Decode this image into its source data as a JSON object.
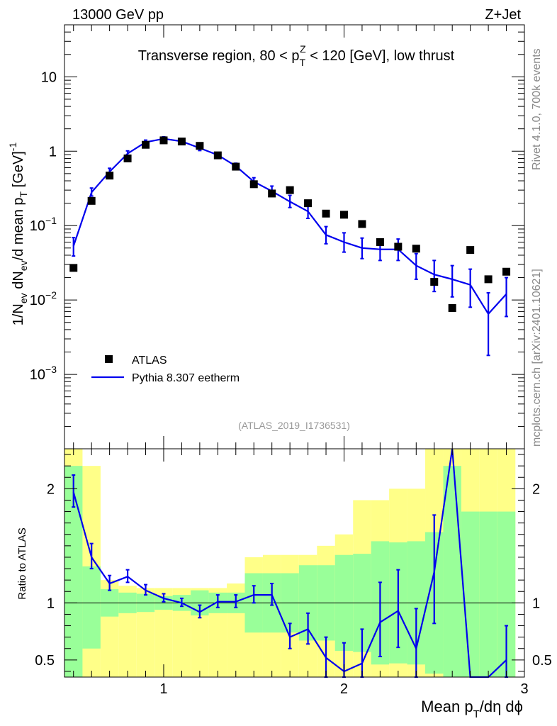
{
  "header": {
    "left": "13000 GeV pp",
    "right": "Z+Jet"
  },
  "side_labels": {
    "rivet": "Rivet 4.1.0,  700k events",
    "mcplots": "mcplots.cern.ch [arXiv:2401.10621]"
  },
  "colors": {
    "mc": "#0000ee",
    "data": "#000000",
    "band_inner": "#99ff99",
    "band_outer": "#ffff88"
  },
  "chart_data": [
    {
      "type": "scatter",
      "panel": "main",
      "title": "Transverse region, 80 < p_T^Z < 120 [GeV], low thrust",
      "analysis_label": "(ATLAS_2019_I1736531)",
      "ylabel": "1/N_ev dN_ev/d mean p_T [GeV]^-1",
      "yscale": "log",
      "ylim": [
        0.0001,
        50
      ],
      "xlim": [
        0.45,
        3.0
      ],
      "y_ticks": [
        {
          "value": 0.001,
          "base": "10",
          "exp": "−3"
        },
        {
          "value": 0.01,
          "base": "10",
          "exp": "−2"
        },
        {
          "value": 0.1,
          "base": "10",
          "exp": "−1"
        },
        {
          "value": 1,
          "base": "1",
          "exp": ""
        },
        {
          "value": 10,
          "base": "10",
          "exp": ""
        }
      ],
      "legend": [
        {
          "label": "ATLAS",
          "style": "marker"
        },
        {
          "label": "Pythia 8.307 eetherm",
          "style": "line"
        }
      ],
      "series": [
        {
          "name": "ATLAS",
          "x": [
            0.5,
            0.6,
            0.7,
            0.8,
            0.9,
            1.0,
            1.1,
            1.2,
            1.3,
            1.4,
            1.5,
            1.6,
            1.7,
            1.8,
            1.9,
            2.0,
            2.1,
            2.2,
            2.3,
            2.4,
            2.5,
            2.6,
            2.7,
            2.8,
            2.9
          ],
          "values": [
            0.027,
            0.215,
            0.47,
            0.8,
            1.22,
            1.4,
            1.35,
            1.18,
            0.88,
            0.62,
            0.36,
            0.27,
            0.3,
            0.2,
            0.145,
            0.14,
            0.105,
            0.06,
            0.052,
            0.049,
            0.0175,
            0.0078,
            0.047,
            0.019,
            0.024
          ]
        },
        {
          "name": "Pythia 8.307 eetherm",
          "x": [
            0.5,
            0.6,
            0.7,
            0.8,
            0.9,
            1.0,
            1.1,
            1.2,
            1.3,
            1.4,
            1.5,
            1.6,
            1.7,
            1.8,
            1.9,
            2.0,
            2.1,
            2.2,
            2.3,
            2.4,
            2.5,
            2.6,
            2.7,
            2.8,
            2.9
          ],
          "values": [
            0.053,
            0.28,
            0.53,
            0.93,
            1.32,
            1.47,
            1.36,
            1.1,
            0.89,
            0.63,
            0.39,
            0.29,
            0.21,
            0.155,
            0.075,
            0.06,
            0.05,
            0.048,
            0.048,
            0.029,
            0.022,
            0.019,
            0.016,
            0.0065,
            0.012
          ],
          "err_low": [
            0.014,
            0.03,
            0.05,
            0.07,
            0.08,
            0.08,
            0.08,
            0.08,
            0.06,
            0.05,
            0.04,
            0.04,
            0.035,
            0.03,
            0.018,
            0.016,
            0.014,
            0.014,
            0.014,
            0.01,
            0.009,
            0.008,
            0.008,
            0.0047,
            0.006
          ],
          "err_high": [
            0.016,
            0.04,
            0.06,
            0.08,
            0.09,
            0.09,
            0.09,
            0.09,
            0.07,
            0.06,
            0.05,
            0.05,
            0.045,
            0.035,
            0.022,
            0.02,
            0.018,
            0.018,
            0.018,
            0.013,
            0.012,
            0.01,
            0.01,
            0.006,
            0.008
          ]
        }
      ]
    },
    {
      "type": "line",
      "panel": "ratio",
      "ylabel": "Ratio to ATLAS",
      "xlabel": "Mean p_T/dη dϕ",
      "ylim": [
        0.35,
        2.35
      ],
      "xlim": [
        0.45,
        3.0
      ],
      "y_ticks": [
        0.5,
        1,
        2
      ],
      "y_tick_labels": [
        "0.5",
        "1",
        "2"
      ],
      "x_ticks": [
        1,
        2,
        3
      ],
      "x_tick_labels": [
        "1",
        "2",
        "3"
      ],
      "x": [
        0.5,
        0.6,
        0.7,
        0.8,
        0.9,
        1.0,
        1.1,
        1.2,
        1.3,
        1.4,
        1.5,
        1.6,
        1.7,
        1.8,
        1.9,
        2.0,
        2.1,
        2.2,
        2.3,
        2.4,
        2.5,
        2.6,
        2.7,
        2.8,
        2.9
      ],
      "band_inner": [
        [
          0.35,
          2.2
        ],
        [
          0.6,
          1.32
        ],
        [
          0.88,
          1.12
        ],
        [
          0.91,
          1.09
        ],
        [
          0.92,
          1.08
        ],
        [
          0.94,
          1.06
        ],
        [
          0.93,
          1.07
        ],
        [
          0.89,
          1.11
        ],
        [
          0.91,
          1.09
        ],
        [
          0.91,
          1.09
        ],
        [
          0.74,
          1.26
        ],
        [
          0.74,
          1.26
        ],
        [
          0.74,
          1.26
        ],
        [
          0.67,
          1.33
        ],
        [
          0.67,
          1.33
        ],
        [
          0.58,
          1.42
        ],
        [
          0.57,
          1.43
        ],
        [
          0.46,
          1.54
        ],
        [
          0.47,
          1.53
        ],
        [
          0.46,
          1.54
        ],
        [
          0.38,
          1.62
        ],
        [
          0.35,
          2.2
        ],
        [
          0.35,
          1.8
        ],
        [
          0.35,
          1.8
        ],
        [
          0.35,
          1.8
        ]
      ],
      "band_outer": [
        [
          0.35,
          2.35
        ],
        [
          0.35,
          2.2
        ],
        [
          0.35,
          1.2
        ],
        [
          0.35,
          1.15
        ],
        [
          0.35,
          1.13
        ],
        [
          0.35,
          1.13
        ],
        [
          0.35,
          1.13
        ],
        [
          0.35,
          1.13
        ],
        [
          0.35,
          1.13
        ],
        [
          0.35,
          1.17
        ],
        [
          0.35,
          1.4
        ],
        [
          0.35,
          1.42
        ],
        [
          0.35,
          1.42
        ],
        [
          0.35,
          1.42
        ],
        [
          0.35,
          1.5
        ],
        [
          0.35,
          1.6
        ],
        [
          0.35,
          1.9
        ],
        [
          0.35,
          1.9
        ],
        [
          0.35,
          2.0
        ],
        [
          0.35,
          2.0
        ],
        [
          0.35,
          2.35
        ],
        [
          0.35,
          2.35
        ],
        [
          0.35,
          2.35
        ],
        [
          0.35,
          2.35
        ],
        [
          0.35,
          2.35
        ]
      ],
      "values": [
        1.97,
        1.4,
        1.17,
        1.23,
        1.11,
        1.04,
        1.0,
        0.92,
        1.01,
        1.01,
        1.07,
        1.07,
        0.7,
        0.77,
        0.52,
        0.4,
        0.47,
        0.83,
        0.93,
        0.6,
        1.27,
        2.35,
        0.3,
        0.3,
        0.5
      ],
      "err_low": [
        0.13,
        0.1,
        0.06,
        0.05,
        0.04,
        0.03,
        0.03,
        0.05,
        0.05,
        0.05,
        0.07,
        0.09,
        0.1,
        0.13,
        0.17,
        0.22,
        0.27,
        0.3,
        0.32,
        0.3,
        0.45,
        0.5,
        0.3,
        0.3,
        0.3
      ],
      "err_high": [
        0.15,
        0.12,
        0.07,
        0.06,
        0.05,
        0.04,
        0.04,
        0.06,
        0.06,
        0.06,
        0.08,
        0.1,
        0.12,
        0.14,
        0.18,
        0.25,
        0.3,
        0.35,
        0.36,
        0.35,
        0.5,
        0.5,
        0.3,
        0.3,
        0.3
      ]
    }
  ]
}
